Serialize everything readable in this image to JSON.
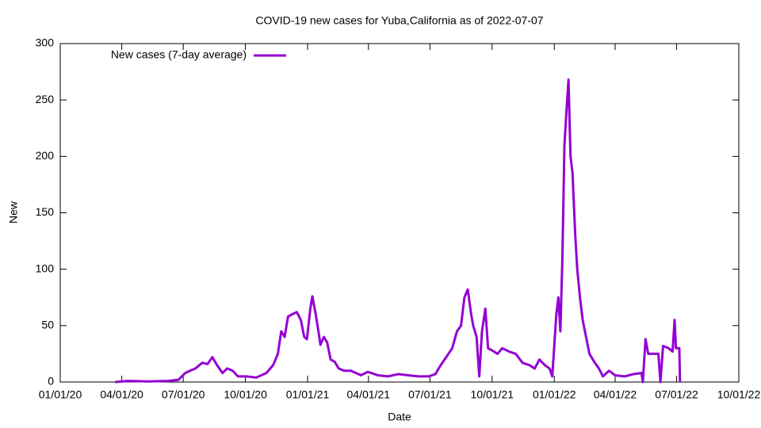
{
  "chart_data": {
    "type": "line",
    "title": "COVID-19 new cases for Yuba,California as of 2022-07-07",
    "xlabel": "Date",
    "ylabel": "New",
    "legend": "top-left",
    "x": [
      "2020-03-22",
      "2020-04-10",
      "2020-05-10",
      "2020-06-09",
      "2020-06-24",
      "2020-07-04",
      "2020-07-11",
      "2020-07-19",
      "2020-07-29",
      "2020-08-06",
      "2020-08-13",
      "2020-08-20",
      "2020-08-28",
      "2020-09-04",
      "2020-09-12",
      "2020-09-20",
      "2020-10-02",
      "2020-10-17",
      "2020-11-01",
      "2020-11-11",
      "2020-11-18",
      "2020-11-23",
      "2020-11-28",
      "2020-12-03",
      "2020-12-09",
      "2020-12-16",
      "2020-12-22",
      "2020-12-27",
      "2020-12-31",
      "2021-01-05",
      "2021-01-08",
      "2021-01-13",
      "2021-01-17",
      "2021-01-20",
      "2021-01-25",
      "2021-01-30",
      "2021-02-04",
      "2021-02-10",
      "2021-02-16",
      "2021-02-24",
      "2021-03-06",
      "2021-03-21",
      "2021-03-31",
      "2021-04-15",
      "2021-04-30",
      "2021-05-15",
      "2021-05-30",
      "2021-06-14",
      "2021-06-29",
      "2021-07-09",
      "2021-07-17",
      "2021-07-25",
      "2021-08-03",
      "2021-08-10",
      "2021-08-16",
      "2021-08-21",
      "2021-08-26",
      "2021-08-31",
      "2021-09-03",
      "2021-09-08",
      "2021-09-12",
      "2021-09-16",
      "2021-09-21",
      "2021-09-25",
      "2021-10-01",
      "2021-10-09",
      "2021-10-16",
      "2021-10-26",
      "2021-11-05",
      "2021-11-15",
      "2021-11-25",
      "2021-12-03",
      "2021-12-10",
      "2021-12-18",
      "2021-12-25",
      "2021-12-29",
      "2022-01-04",
      "2022-01-07",
      "2022-01-10",
      "2022-01-13",
      "2022-01-16",
      "2022-01-19",
      "2022-01-22",
      "2022-01-25",
      "2022-01-28",
      "2022-02-01",
      "2022-02-04",
      "2022-02-08",
      "2022-02-12",
      "2022-02-17",
      "2022-02-22",
      "2022-03-01",
      "2022-03-08",
      "2022-03-14",
      "2022-03-23",
      "2022-04-01",
      "2022-04-15",
      "2022-04-28",
      "2022-05-10",
      "2022-05-12",
      "2022-05-16",
      "2022-05-20",
      "2022-05-28",
      "2022-06-04",
      "2022-06-07",
      "2022-06-11",
      "2022-06-19",
      "2022-06-25",
      "2022-06-28",
      "2022-06-30",
      "2022-07-05",
      "2022-07-06"
    ],
    "series": [
      {
        "name": "New cases (7-day average)",
        "color": "#9400d3",
        "values": [
          0,
          1,
          0.5,
          1,
          2,
          8,
          10,
          12,
          17,
          16,
          22,
          15,
          8,
          12,
          10,
          5,
          5,
          4,
          8,
          15,
          25,
          45,
          40,
          58,
          60,
          62,
          55,
          40,
          38,
          65,
          76,
          60,
          45,
          33,
          40,
          35,
          20,
          18,
          12,
          10,
          10,
          6,
          9,
          6,
          5,
          7,
          6,
          5,
          5,
          7,
          15,
          22,
          30,
          45,
          50,
          75,
          82,
          60,
          50,
          40,
          5,
          45,
          65,
          30,
          28,
          25,
          30,
          27,
          25,
          17,
          15,
          12,
          20,
          15,
          12,
          5,
          60,
          75,
          45,
          110,
          210,
          240,
          268,
          200,
          185,
          130,
          100,
          75,
          55,
          40,
          25,
          18,
          12,
          5,
          10,
          6,
          5,
          7,
          8,
          0,
          38,
          25,
          25,
          25,
          0,
          32,
          30,
          27,
          55,
          30,
          30,
          0
        ]
      }
    ],
    "xlim": [
      "2020-01-01",
      "2022-10-01"
    ],
    "xticks": [
      {
        "value": "2020-01-01",
        "label": "01/01/20"
      },
      {
        "value": "2020-04-01",
        "label": "04/01/20"
      },
      {
        "value": "2020-07-01",
        "label": "07/01/20"
      },
      {
        "value": "2020-10-01",
        "label": "10/01/20"
      },
      {
        "value": "2021-01-01",
        "label": "01/01/21"
      },
      {
        "value": "2021-04-01",
        "label": "04/01/21"
      },
      {
        "value": "2021-07-01",
        "label": "07/01/21"
      },
      {
        "value": "2021-10-01",
        "label": "10/01/21"
      },
      {
        "value": "2022-01-01",
        "label": "01/01/22"
      },
      {
        "value": "2022-04-01",
        "label": "04/01/22"
      },
      {
        "value": "2022-07-01",
        "label": "07/01/22"
      },
      {
        "value": "2022-10-01",
        "label": "10/01/22"
      }
    ],
    "ylim": [
      0,
      300
    ],
    "yticks": [
      0,
      50,
      100,
      150,
      200,
      250,
      300
    ]
  }
}
